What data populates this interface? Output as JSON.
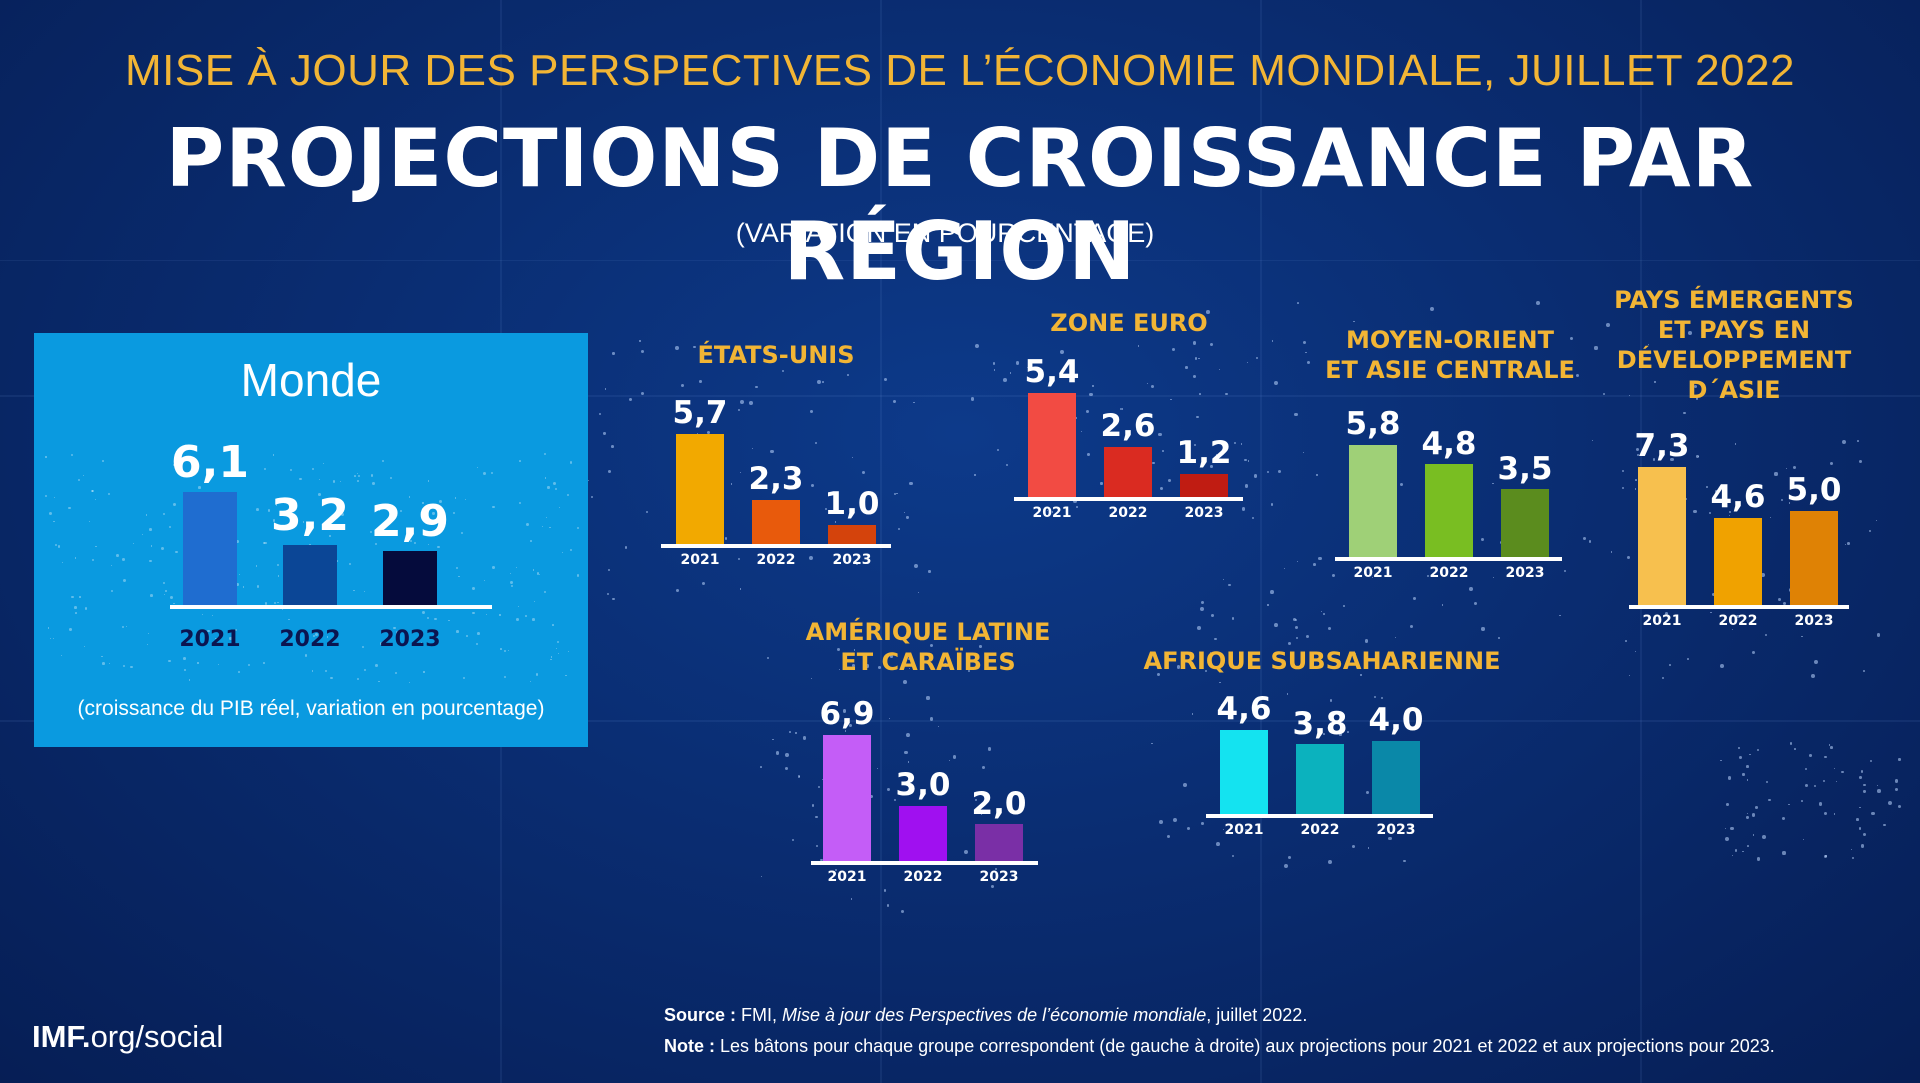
{
  "header": {
    "supertitle": "MISE À JOUR DES PERSPECTIVES DE L’ÉCONOMIE MONDIALE, JUILLET 2022",
    "title": "PROJECTIONS DE CROISSANCE PAR RÉGION",
    "unit_note": "(VARIATION EN POURCENTAGE)"
  },
  "world": {
    "title": "Monde",
    "footnote": "(croissance du PIB réel, variation en pourcentage)"
  },
  "footer": {
    "brand_bold": "IMF.",
    "brand_rest": "org/social",
    "source_key": "Source :",
    "source_pre": " FMI, ",
    "source_italic": "Mise à jour des Perspectives de l’économie mondiale",
    "source_post": ", juillet 2022.",
    "note_key": "Note :",
    "note_text": " Les bâtons pour chaque groupe correspondent (de gauche à droite) aux projections pour 2021 et 2022 et  aux projections pour 2023."
  },
  "chart_data": [
    {
      "id": "monde",
      "type": "bar",
      "title": "Monde",
      "categories": [
        "2021",
        "2022",
        "2023"
      ],
      "values": [
        6.1,
        3.2,
        2.9
      ],
      "labels": [
        "6,1",
        "3,2",
        "2,9"
      ],
      "colors": [
        "#1f6dd0",
        "#0b4696",
        "#050b3c"
      ]
    },
    {
      "id": "etats-unis",
      "type": "bar",
      "title": "ÉTATS-UNIS",
      "categories": [
        "2021",
        "2022",
        "2023"
      ],
      "values": [
        5.7,
        2.3,
        1.0
      ],
      "labels": [
        "5,7",
        "2,3",
        "1,0"
      ],
      "colors": [
        "#f2a900",
        "#e85a0c",
        "#d4430c"
      ]
    },
    {
      "id": "zone-euro",
      "type": "bar",
      "title": "ZONE EURO",
      "categories": [
        "2021",
        "2022",
        "2023"
      ],
      "values": [
        5.4,
        2.6,
        1.2
      ],
      "labels": [
        "5,4",
        "2,6",
        "1,2"
      ],
      "colors": [
        "#f24b43",
        "#da2b21",
        "#c01c12"
      ]
    },
    {
      "id": "moyen-orient",
      "type": "bar",
      "title": "MOYEN-ORIENT\nET ASIE CENTRALE",
      "categories": [
        "2021",
        "2022",
        "2023"
      ],
      "values": [
        5.8,
        4.8,
        3.5
      ],
      "labels": [
        "5,8",
        "4,8",
        "3,5"
      ],
      "colors": [
        "#9fd077",
        "#79be22",
        "#5b8c1e"
      ]
    },
    {
      "id": "asie",
      "type": "bar",
      "title": "PAYS ÉMERGENTS\nET PAYS EN\nDÉVELOPPEMENT\nD´ASIE",
      "categories": [
        "2021",
        "2022",
        "2023"
      ],
      "values": [
        7.3,
        4.6,
        5.0
      ],
      "labels": [
        "7,3",
        "4,6",
        "5,0"
      ],
      "colors": [
        "#f7c04e",
        "#f0a200",
        "#df8205"
      ]
    },
    {
      "id": "amerique-latine",
      "type": "bar",
      "title": "AMÉRIQUE LATINE\nET CARAÏBES",
      "categories": [
        "2021",
        "2022",
        "2023"
      ],
      "values": [
        6.9,
        3.0,
        2.0
      ],
      "labels": [
        "6,9",
        "3,0",
        "2,0"
      ],
      "colors": [
        "#c45df7",
        "#a010f0",
        "#7a2fa6"
      ]
    },
    {
      "id": "afrique",
      "type": "bar",
      "title": "AFRIQUE SUBSAHARIENNE",
      "categories": [
        "2021",
        "2022",
        "2023"
      ],
      "values": [
        4.6,
        3.8,
        4.0
      ],
      "labels": [
        "4,6",
        "3,8",
        "4,0"
      ],
      "colors": [
        "#14e3f0",
        "#0bb2be",
        "#0a88a8"
      ]
    }
  ]
}
